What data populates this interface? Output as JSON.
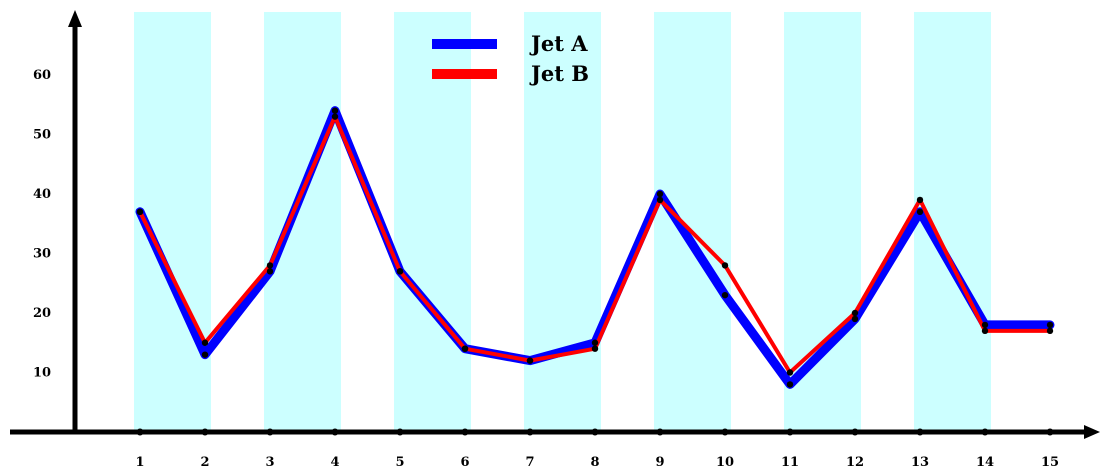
{
  "chart_data": {
    "type": "line",
    "title": "",
    "xlabel": "",
    "ylabel": "",
    "x": [
      1,
      2,
      3,
      4,
      5,
      6,
      7,
      8,
      9,
      10,
      11,
      12,
      13,
      14,
      15
    ],
    "xlim": [
      0,
      16
    ],
    "ylim": [
      0,
      70
    ],
    "yticks": [
      10,
      20,
      30,
      40,
      50,
      60
    ],
    "grid": false,
    "shaded_bands": [
      [
        1,
        2
      ],
      [
        3,
        4
      ],
      [
        5,
        6
      ],
      [
        7,
        8
      ],
      [
        9,
        10
      ],
      [
        11,
        12
      ],
      [
        13,
        14
      ]
    ],
    "band_color": "#ccffff",
    "legend_position": "top-center",
    "series": [
      {
        "name": "Jet A",
        "color": "#0000ff",
        "values": [
          37,
          13,
          27,
          54,
          27,
          14,
          12,
          15,
          40,
          23,
          8,
          19,
          37,
          18,
          18
        ]
      },
      {
        "name": "Jet B",
        "color": "#ff0000",
        "values": [
          37,
          15,
          28,
          53,
          27,
          14,
          12,
          14,
          39,
          28,
          10,
          20,
          39,
          17,
          17
        ]
      }
    ]
  }
}
